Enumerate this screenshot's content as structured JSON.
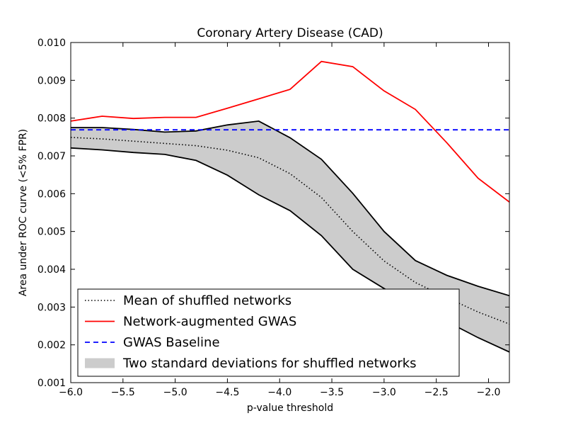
{
  "chart_data": {
    "type": "line",
    "title": "Coronary Artery Disease (CAD)",
    "xlabel": "p-value threshold",
    "ylabel": "Area under ROC curve (<5% FPR)",
    "xlim": [
      -6.0,
      -1.8
    ],
    "ylim": [
      0.001,
      0.01
    ],
    "xticks": [
      -6.0,
      -5.5,
      -5.0,
      -4.5,
      -4.0,
      -3.5,
      -3.0,
      -2.5,
      -2.0
    ],
    "xtick_labels": [
      "−6.0",
      "−5.5",
      "−5.0",
      "−4.5",
      "−4.0",
      "−3.5",
      "−3.0",
      "−2.5",
      "−2.0"
    ],
    "yticks": [
      0.001,
      0.002,
      0.003,
      0.004,
      0.005,
      0.006,
      0.007,
      0.008,
      0.009,
      0.01
    ],
    "ytick_labels": [
      "0.001",
      "0.002",
      "0.003",
      "0.004",
      "0.005",
      "0.006",
      "0.007",
      "0.008",
      "0.009",
      "0.010"
    ],
    "grid": false,
    "legend_position": "lower-left",
    "x": [
      -6.0,
      -5.7,
      -5.4,
      -5.1,
      -4.8,
      -4.5,
      -4.2,
      -3.9,
      -3.6,
      -3.3,
      -3.0,
      -2.7,
      -2.4,
      -2.1,
      -1.8
    ],
    "series": [
      {
        "name": "Mean of shuffled networks",
        "style": "dotted",
        "color": "#000000",
        "values": [
          0.00749,
          0.00745,
          0.00739,
          0.00733,
          0.00727,
          0.00715,
          0.00695,
          0.00653,
          0.0059,
          0.005,
          0.00422,
          0.00365,
          0.00325,
          0.00287,
          0.00255
        ]
      },
      {
        "name": "Network-augmented GWAS",
        "style": "solid",
        "color": "#ff0000",
        "values": [
          0.00792,
          0.00805,
          0.00799,
          0.00802,
          0.00802,
          0.00826,
          0.00851,
          0.00876,
          0.0095,
          0.00936,
          0.00872,
          0.00823,
          0.00735,
          0.00641,
          0.00578
        ]
      },
      {
        "name": "GWAS Baseline",
        "style": "dashed",
        "color": "#0000ff",
        "values": [
          0.00769,
          0.00769,
          0.00769,
          0.00769,
          0.00769,
          0.00769,
          0.00769,
          0.00769,
          0.00769,
          0.00769,
          0.00769,
          0.00769,
          0.00769,
          0.00769,
          0.00769
        ]
      }
    ],
    "band": {
      "name": "Two standard deviations for shuffled networks",
      "color": "#cccccc",
      "edge_color": "#000000",
      "upper": [
        0.00775,
        0.00775,
        0.0077,
        0.00763,
        0.00766,
        0.00782,
        0.00792,
        0.00748,
        0.00691,
        0.00601,
        0.005,
        0.00423,
        0.00384,
        0.00355,
        0.0033
      ],
      "lower": [
        0.00721,
        0.00716,
        0.00709,
        0.00704,
        0.00688,
        0.00649,
        0.00597,
        0.00555,
        0.00489,
        0.004,
        0.00349,
        0.003,
        0.00262,
        0.00219,
        0.00181
      ]
    },
    "legend": [
      {
        "label": "Mean of shuffled networks",
        "kind": "dotted",
        "color": "#000000"
      },
      {
        "label": "Network-augmented GWAS",
        "kind": "solid",
        "color": "#ff0000"
      },
      {
        "label": "GWAS Baseline",
        "kind": "dashed",
        "color": "#0000ff"
      },
      {
        "label": "Two standard deviations for shuffled networks",
        "kind": "patch",
        "color": "#cccccc"
      }
    ]
  }
}
